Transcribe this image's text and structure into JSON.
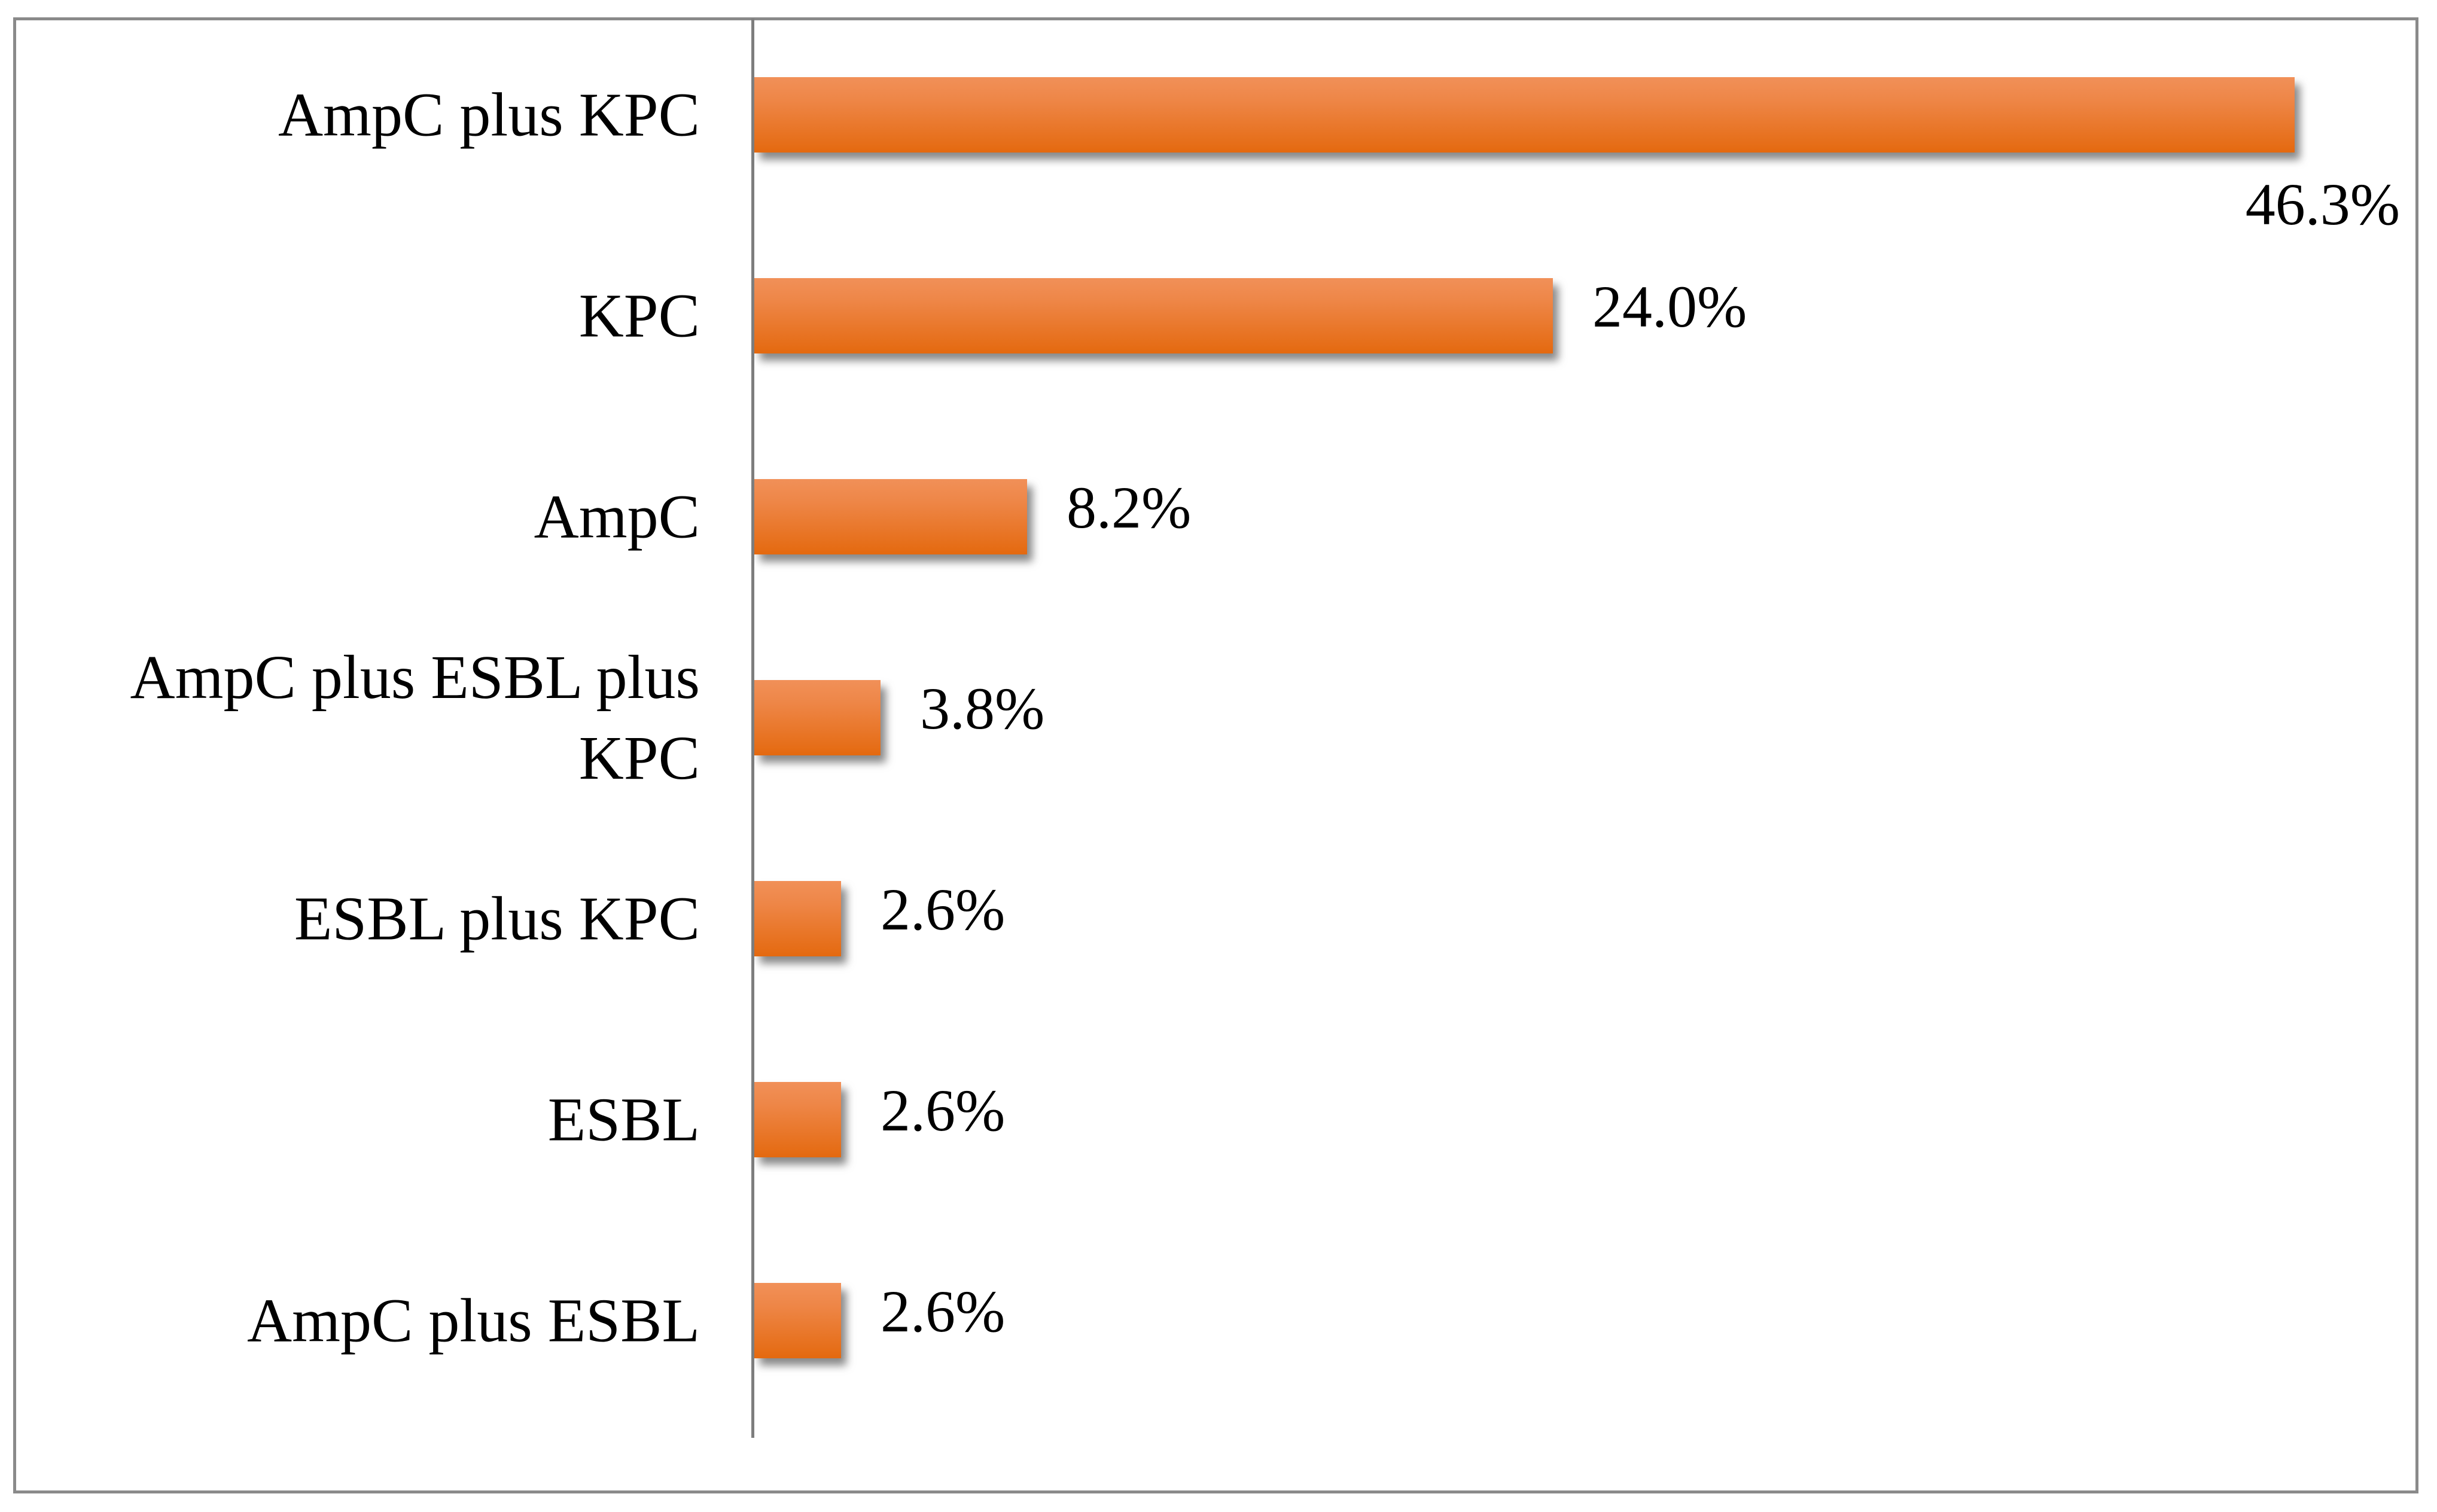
{
  "chart_data": {
    "type": "bar",
    "orientation": "horizontal",
    "title": "",
    "xlabel": "",
    "ylabel": "",
    "categories": [
      "AmpC plus KPC",
      "KPC",
      "AmpC",
      "AmpC plus ESBL plus KPC",
      "ESBL plus KPC",
      "ESBL",
      "AmpC plus ESBL"
    ],
    "values": [
      46.3,
      24.0,
      8.2,
      3.8,
      2.6,
      2.6,
      2.6
    ],
    "labels": [
      "46.3%",
      "24.0%",
      "8.2%",
      "3.8%",
      "2.6%",
      "2.6%",
      "2.6%"
    ],
    "xlim": [
      0,
      50
    ],
    "grid": false,
    "legend": "none",
    "data_label_position": "outside-end",
    "bar_gradient_top": "#F19058",
    "bar_gradient_mid": "#EE8647",
    "bar_gradient_bottom": "#E4690F",
    "axis_color": "#7E7E7E",
    "border_color": "#8A8A8A",
    "label_color": "#000000",
    "background_color": "#FFFFFF"
  }
}
